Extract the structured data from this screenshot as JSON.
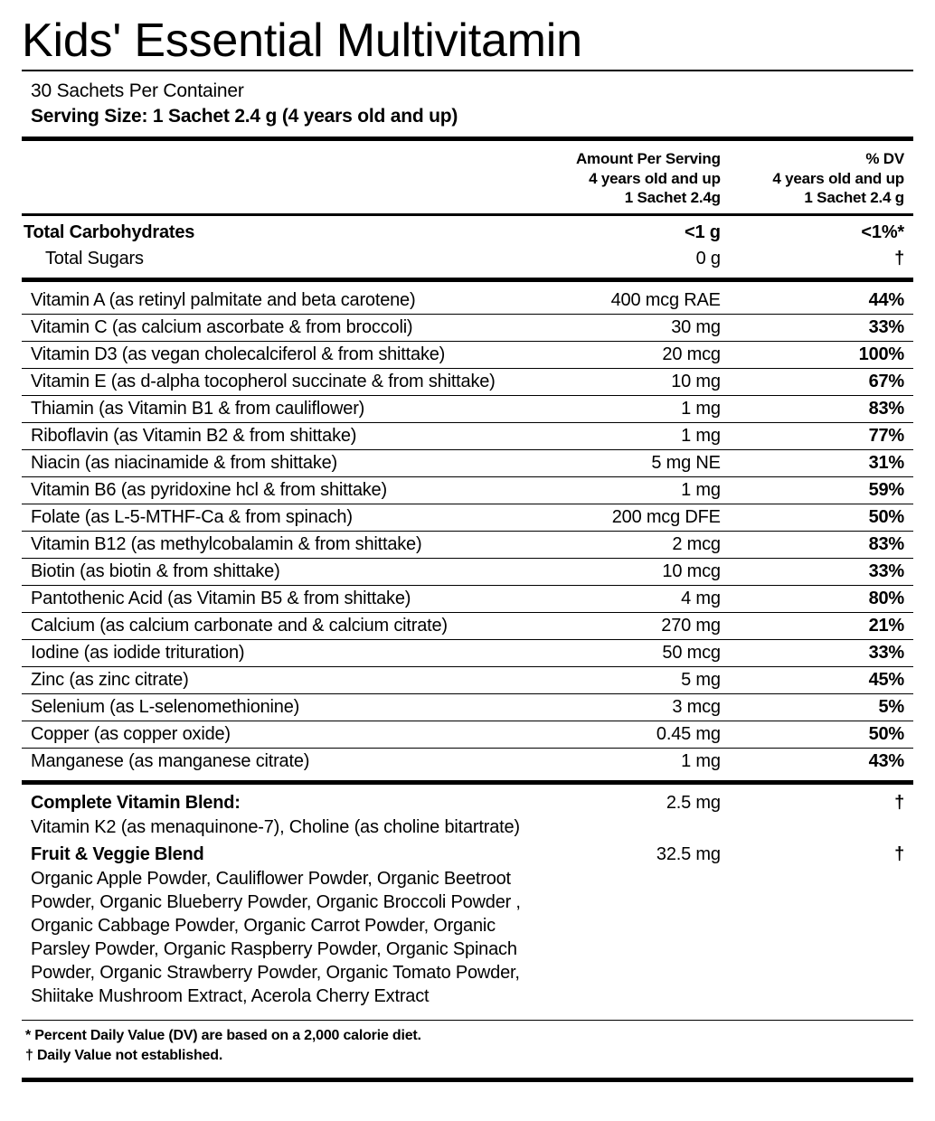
{
  "title": "Kids' Essential Multivitamin",
  "container_line": "30 Sachets Per Container",
  "serving_size_line": "Serving Size: 1 Sachet 2.4 g (4 years old and up)",
  "header_amount": "Amount Per Serving\n4 years old and up\n1 Sachet 2.4g",
  "header_dv": "% DV\n4 years old and up\n1 Sachet 2.4 g",
  "carb_section": [
    {
      "name": "Total Carbohydrates",
      "amount": "<1 g",
      "dv": "<1%*",
      "bold": true,
      "indent": false
    },
    {
      "name": "Total Sugars",
      "amount": "0 g",
      "dv": "†",
      "bold": false,
      "indent": true
    }
  ],
  "nutrients": [
    {
      "name": "Vitamin A (as retinyl palmitate and beta carotene)",
      "amount": "400 mcg RAE",
      "dv": "44%"
    },
    {
      "name": "Vitamin C (as calcium ascorbate & from broccoli)",
      "amount": "30 mg",
      "dv": "33%"
    },
    {
      "name": "Vitamin D3 (as vegan cholecalciferol & from shittake)",
      "amount": "20 mcg",
      "dv": "100%"
    },
    {
      "name": "Vitamin E (as d-alpha tocopherol succinate & from shittake)",
      "amount": "10 mg",
      "dv": "67%"
    },
    {
      "name": "Thiamin (as Vitamin B1 & from cauliflower)",
      "amount": "1 mg",
      "dv": "83%"
    },
    {
      "name": "Riboflavin (as Vitamin B2 & from shittake)",
      "amount": "1 mg",
      "dv": "77%"
    },
    {
      "name": "Niacin (as niacinamide & from shittake)",
      "amount": "5 mg NE",
      "dv": "31%"
    },
    {
      "name": "Vitamin B6 (as pyridoxine hcl & from shittake)",
      "amount": "1 mg",
      "dv": "59%"
    },
    {
      "name": "Folate (as L-5-MTHF-Ca & from spinach)",
      "amount": "200 mcg DFE",
      "dv": "50%"
    },
    {
      "name": "Vitamin B12 (as methylcobalamin & from shittake)",
      "amount": "2 mcg",
      "dv": "83%"
    },
    {
      "name": "Biotin (as biotin & from shittake)",
      "amount": "10 mcg",
      "dv": "33%"
    },
    {
      "name": "Pantothenic Acid (as Vitamin B5 & from shittake)",
      "amount": "4 mg",
      "dv": "80%"
    },
    {
      "name": "Calcium (as calcium carbonate and & calcium citrate)",
      "amount": "270 mg",
      "dv": "21%"
    },
    {
      "name": "Iodine (as iodide trituration)",
      "amount": "50 mcg",
      "dv": "33%"
    },
    {
      "name": "Zinc (as zinc citrate)",
      "amount": "5 mg",
      "dv": "45%"
    },
    {
      "name": "Selenium (as L-selenomethionine)",
      "amount": "3 mcg",
      "dv": "5%"
    },
    {
      "name": "Copper (as copper oxide)",
      "amount": "0.45 mg",
      "dv": "50%"
    },
    {
      "name": "Manganese (as manganese citrate)",
      "amount": "1 mg",
      "dv": "43%"
    }
  ],
  "blends": [
    {
      "title": "Complete Vitamin Blend:",
      "desc": "Vitamin K2 (as menaquinone-7), Choline (as choline bitartrate)",
      "amount": "2.5 mg",
      "dv": "†"
    },
    {
      "title": "Fruit & Veggie Blend",
      "desc": "Organic Apple Powder, Cauliflower Powder, Organic Beetroot Powder, Organic Blueberry Powder, Organic Broccoli Powder , Organic Cabbage Powder, Organic Carrot Powder, Organic Parsley Powder, Organic Raspberry Powder, Organic Spinach Powder, Organic Strawberry Powder, Organic Tomato Powder, Shiitake Mushroom Extract, Acerola Cherry Extract",
      "amount": "32.5 mg",
      "dv": "†"
    }
  ],
  "footnote1": "* Percent Daily Value (DV) are based on a 2,000 calorie diet.",
  "footnote2": "† Daily Value not established."
}
